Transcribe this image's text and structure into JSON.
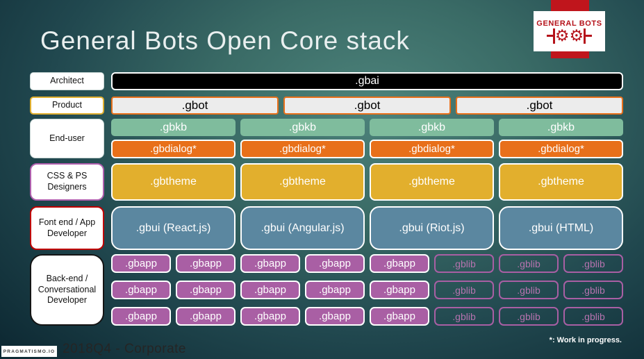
{
  "title": "General Bots Open Core stack",
  "logo": {
    "text": "GENERAL BOTS"
  },
  "stack": {
    "labels": [
      "Architect",
      "Product",
      "End-user",
      "CSS & PS Designers",
      "Font end / App Developer",
      "Back-end / Conversational Developer"
    ],
    "gbai": ".gbai",
    "gbot": [
      ".gbot",
      ".gbot",
      ".gbot"
    ],
    "gbkb": [
      ".gbkb",
      ".gbkb",
      ".gbkb",
      ".gbkb"
    ],
    "gbdialog": [
      ".gbdialog*",
      ".gbdialog*",
      ".gbdialog*",
      ".gbdialog*"
    ],
    "gbtheme": [
      ".gbtheme",
      ".gbtheme",
      ".gbtheme",
      ".gbtheme"
    ],
    "gbui": [
      ".gbui (React.js)",
      ".gbui (Angular.js)",
      ".gbui (Riot.js)",
      ".gbui (HTML)"
    ],
    "gbapp_grid": [
      [
        ".gbapp",
        ".gbapp",
        ".gbapp",
        ".gbapp",
        ".gbapp",
        ".gblib",
        ".gblib",
        ".gblib"
      ],
      [
        ".gbapp",
        ".gbapp",
        ".gbapp",
        ".gbapp",
        ".gbapp",
        ".gblib",
        ".gblib",
        ".gblib"
      ],
      [
        ".gbapp",
        ".gbapp",
        ".gbapp",
        ".gbapp",
        ".gbapp",
        ".gblib",
        ".gblib",
        ".gblib"
      ]
    ]
  },
  "footer": {
    "brand": "PRAGMATISMO.IO",
    "caption": "2018Q4 - Corporate",
    "note": "*: Work in progress."
  },
  "colors": {
    "background_center": "#4d837b",
    "background_edge": "#0e2a34",
    "logo_red": "#c0151c",
    "gbai_fill": "#000000",
    "gbot_fill": "#ececec",
    "gbot_border": "#e8701a",
    "gbkb_fill": "#7fbc9d",
    "gbdialog_fill": "#e8701a",
    "gbtheme_fill": "#e2af2d",
    "gbui_fill": "#5b87a0",
    "gbapp_fill": "#a95fa4",
    "gblib_border": "#a95fa4",
    "product_label_border": "#e0af2e",
    "cssps_label_border": "#b05fae",
    "frontend_label_border": "#c00000",
    "backend_label_border": "#141414"
  }
}
